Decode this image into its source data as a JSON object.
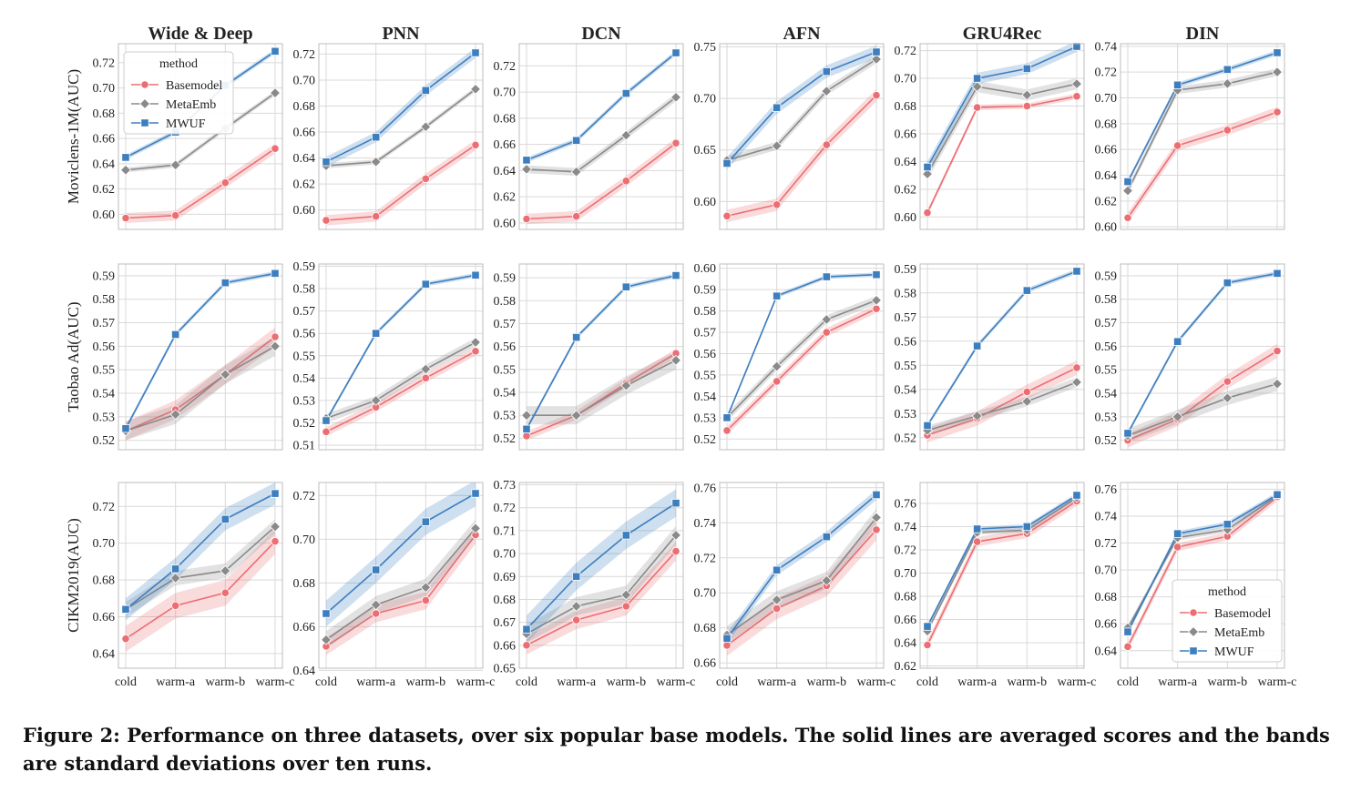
{
  "caption": "Figure 2: Performance on three datasets, over six popular base models. The solid lines are averaged scores and the bands are standard deviations over ten runs.",
  "legend": {
    "title": "method",
    "entries": [
      "Basemodel",
      "MetaEmb",
      "MWUF"
    ],
    "colors": {
      "Basemodel": "#ec6e73",
      "MetaEmb": "#8a8a8a",
      "MWUF": "#3d7ebf"
    },
    "markers": {
      "Basemodel": "circle",
      "MetaEmb": "diamond",
      "MWUF": "square"
    },
    "placement": [
      "upper-left of Wide & Deep / Movielens-1M",
      "lower-right of DIN / CIKM2019"
    ]
  },
  "chart_data": {
    "type": "line",
    "columns": [
      "Wide & Deep",
      "PNN",
      "DCN",
      "AFN",
      "GRU4Rec",
      "DIN"
    ],
    "rows": [
      "Moviclens-1M(AUC)",
      "Taobao Ad(AUC)",
      "CIKM2019(AUC)"
    ],
    "categories": [
      "cold",
      "warm-a",
      "warm-b",
      "warm-c"
    ],
    "grid": true,
    "bands": "standard deviation",
    "panels": [
      [
        {
          "ylim": [
            0.588,
            0.735
          ],
          "yticks": [
            "0.60",
            "0.62",
            "0.64",
            "0.66",
            "0.68",
            "0.70",
            "0.72"
          ],
          "series": [
            {
              "name": "Basemodel",
              "values": [
                0.597,
                0.599,
                0.625,
                0.652
              ],
              "std": 0.004
            },
            {
              "name": "MetaEmb",
              "values": [
                0.635,
                0.639,
                0.668,
                0.696
              ],
              "std": 0.002
            },
            {
              "name": "MWUF",
              "values": [
                0.645,
                0.665,
                0.702,
                0.729
              ],
              "std": 0.002
            }
          ]
        },
        {
          "ylim": [
            0.585,
            0.728
          ],
          "yticks": [
            "0.60",
            "0.62",
            "0.64",
            "0.66",
            "0.68",
            "0.70",
            "0.72"
          ],
          "series": [
            {
              "name": "Basemodel",
              "values": [
                0.592,
                0.595,
                0.624,
                0.65
              ],
              "std": 0.004
            },
            {
              "name": "MetaEmb",
              "values": [
                0.634,
                0.637,
                0.664,
                0.693
              ],
              "std": 0.002
            },
            {
              "name": "MWUF",
              "values": [
                0.637,
                0.656,
                0.692,
                0.721
              ],
              "std": 0.004
            }
          ]
        },
        {
          "ylim": [
            0.595,
            0.737
          ],
          "yticks": [
            "0.60",
            "0.62",
            "0.64",
            "0.66",
            "0.68",
            "0.70",
            "0.72"
          ],
          "series": [
            {
              "name": "Basemodel",
              "values": [
                0.603,
                0.605,
                0.632,
                0.661
              ],
              "std": 0.004
            },
            {
              "name": "MetaEmb",
              "values": [
                0.641,
                0.639,
                0.667,
                0.696
              ],
              "std": 0.003
            },
            {
              "name": "MWUF",
              "values": [
                0.648,
                0.663,
                0.699,
                0.73
              ],
              "std": 0.002
            }
          ]
        },
        {
          "ylim": [
            0.573,
            0.753
          ],
          "yticks": [
            "0.60",
            "0.65",
            "0.70",
            "0.75"
          ],
          "series": [
            {
              "name": "Basemodel",
              "values": [
                0.586,
                0.597,
                0.655,
                0.703
              ],
              "std": 0.006
            },
            {
              "name": "MetaEmb",
              "values": [
                0.64,
                0.654,
                0.707,
                0.738
              ],
              "std": 0.004
            },
            {
              "name": "MWUF",
              "values": [
                0.637,
                0.691,
                0.726,
                0.745
              ],
              "std": 0.006
            }
          ]
        },
        {
          "ylim": [
            0.591,
            0.725
          ],
          "yticks": [
            "0.60",
            "0.62",
            "0.64",
            "0.66",
            "0.68",
            "0.70",
            "0.72"
          ],
          "series": [
            {
              "name": "Basemodel",
              "values": [
                0.603,
                0.679,
                0.68,
                0.687
              ],
              "std": 0.002
            },
            {
              "name": "MetaEmb",
              "values": [
                0.631,
                0.694,
                0.688,
                0.696
              ],
              "std": 0.004
            },
            {
              "name": "MWUF",
              "values": [
                0.636,
                0.7,
                0.707,
                0.723
              ],
              "std": 0.004
            }
          ]
        },
        {
          "ylim": [
            0.598,
            0.742
          ],
          "yticks": [
            "0.60",
            "0.62",
            "0.64",
            "0.66",
            "0.68",
            "0.70",
            "0.72",
            "0.74"
          ],
          "series": [
            {
              "name": "Basemodel",
              "values": [
                0.607,
                0.663,
                0.675,
                0.689
              ],
              "std": 0.004
            },
            {
              "name": "MetaEmb",
              "values": [
                0.628,
                0.706,
                0.711,
                0.72
              ],
              "std": 0.003
            },
            {
              "name": "MWUF",
              "values": [
                0.635,
                0.71,
                0.722,
                0.735
              ],
              "std": 0.002
            }
          ]
        }
      ],
      [
        {
          "ylim": [
            0.516,
            0.595
          ],
          "yticks": [
            "0.52",
            "0.53",
            "0.54",
            "0.55",
            "0.56",
            "0.57",
            "0.58",
            "0.59"
          ],
          "series": [
            {
              "name": "Basemodel",
              "values": [
                0.524,
                0.533,
                0.548,
                0.564
              ],
              "std": 0.004
            },
            {
              "name": "MetaEmb",
              "values": [
                0.524,
                0.531,
                0.548,
                0.56
              ],
              "std": 0.004
            },
            {
              "name": "MWUF",
              "values": [
                0.525,
                0.565,
                0.587,
                0.591
              ],
              "std": 0.001
            }
          ]
        },
        {
          "ylim": [
            0.508,
            0.591
          ],
          "yticks": [
            "0.51",
            "0.52",
            "0.53",
            "0.54",
            "0.55",
            "0.56",
            "0.57",
            "0.58",
            "0.59"
          ],
          "series": [
            {
              "name": "Basemodel",
              "values": [
                0.516,
                0.527,
                0.54,
                0.552
              ],
              "std": 0.002
            },
            {
              "name": "MetaEmb",
              "values": [
                0.522,
                0.53,
                0.544,
                0.556
              ],
              "std": 0.002
            },
            {
              "name": "MWUF",
              "values": [
                0.521,
                0.56,
                0.582,
                0.586
              ],
              "std": 0.001
            }
          ]
        },
        {
          "ylim": [
            0.515,
            0.596
          ],
          "yticks": [
            "0.52",
            "0.53",
            "0.54",
            "0.55",
            "0.56",
            "0.57",
            "0.58",
            "0.59"
          ],
          "series": [
            {
              "name": "Basemodel",
              "values": [
                0.521,
                0.53,
                0.544,
                0.557
              ],
              "std": 0.002
            },
            {
              "name": "MetaEmb",
              "values": [
                0.53,
                0.53,
                0.543,
                0.554
              ],
              "std": 0.004
            },
            {
              "name": "MWUF",
              "values": [
                0.524,
                0.564,
                0.586,
                0.591
              ],
              "std": 0.001
            }
          ]
        },
        {
          "ylim": [
            0.515,
            0.602
          ],
          "yticks": [
            "0.52",
            "0.53",
            "0.54",
            "0.55",
            "0.56",
            "0.57",
            "0.58",
            "0.59",
            "0.60"
          ],
          "series": [
            {
              "name": "Basemodel",
              "values": [
                0.524,
                0.547,
                0.57,
                0.581
              ],
              "std": 0.002
            },
            {
              "name": "MetaEmb",
              "values": [
                0.53,
                0.554,
                0.576,
                0.585
              ],
              "std": 0.002
            },
            {
              "name": "MWUF",
              "values": [
                0.53,
                0.587,
                0.596,
                0.597
              ],
              "std": 0.001
            }
          ]
        },
        {
          "ylim": [
            0.515,
            0.592
          ],
          "yticks": [
            "0.52",
            "0.53",
            "0.54",
            "0.55",
            "0.56",
            "0.57",
            "0.58",
            "0.59"
          ],
          "series": [
            {
              "name": "Basemodel",
              "values": [
                0.521,
                0.528,
                0.539,
                0.549
              ],
              "std": 0.003
            },
            {
              "name": "MetaEmb",
              "values": [
                0.523,
                0.529,
                0.535,
                0.543
              ],
              "std": 0.002
            },
            {
              "name": "MWUF",
              "values": [
                0.525,
                0.558,
                0.581,
                0.589
              ],
              "std": 0.001
            }
          ]
        },
        {
          "ylim": [
            0.516,
            0.595
          ],
          "yticks": [
            "0.52",
            "0.53",
            "0.54",
            "0.55",
            "0.56",
            "0.57",
            "0.58",
            "0.59"
          ],
          "series": [
            {
              "name": "Basemodel",
              "values": [
                0.52,
                0.529,
                0.545,
                0.558
              ],
              "std": 0.003
            },
            {
              "name": "MetaEmb",
              "values": [
                0.522,
                0.53,
                0.538,
                0.544
              ],
              "std": 0.003
            },
            {
              "name": "MWUF",
              "values": [
                0.523,
                0.562,
                0.587,
                0.591
              ],
              "std": 0.001
            }
          ]
        }
      ],
      [
        {
          "ylim": [
            0.632,
            0.733
          ],
          "yticks": [
            "0.64",
            "0.66",
            "0.68",
            "0.70",
            "0.72"
          ],
          "series": [
            {
              "name": "Basemodel",
              "values": [
                0.648,
                0.666,
                0.673,
                0.701
              ],
              "std": 0.007
            },
            {
              "name": "MetaEmb",
              "values": [
                0.664,
                0.681,
                0.685,
                0.709
              ],
              "std": 0.004
            },
            {
              "name": "MWUF",
              "values": [
                0.664,
                0.686,
                0.713,
                0.727
              ],
              "std": 0.006
            }
          ]
        },
        {
          "ylim": [
            0.641,
            0.726
          ],
          "yticks": [
            "0.64",
            "0.66",
            "0.68",
            "0.70",
            "0.72"
          ],
          "series": [
            {
              "name": "Basemodel",
              "values": [
                0.651,
                0.666,
                0.672,
                0.702
              ],
              "std": 0.004
            },
            {
              "name": "MetaEmb",
              "values": [
                0.654,
                0.67,
                0.678,
                0.705
              ],
              "std": 0.004
            },
            {
              "name": "MWUF",
              "values": [
                0.666,
                0.686,
                0.708,
                0.721
              ],
              "std": 0.006
            }
          ]
        },
        {
          "ylim": [
            0.65,
            0.731
          ],
          "yticks": [
            "0.65",
            "0.66",
            "0.67",
            "0.68",
            "0.69",
            "0.70",
            "0.71",
            "0.72",
            "0.73"
          ],
          "series": [
            {
              "name": "Basemodel",
              "values": [
                0.66,
                0.671,
                0.677,
                0.701
              ],
              "std": 0.004
            },
            {
              "name": "MetaEmb",
              "values": [
                0.665,
                0.677,
                0.682,
                0.708
              ],
              "std": 0.004
            },
            {
              "name": "MWUF",
              "values": [
                0.667,
                0.69,
                0.708,
                0.722
              ],
              "std": 0.006
            }
          ]
        },
        {
          "ylim": [
            0.657,
            0.763
          ],
          "yticks": [
            "0.66",
            "0.68",
            "0.70",
            "0.72",
            "0.74",
            "0.76"
          ],
          "series": [
            {
              "name": "Basemodel",
              "values": [
                0.67,
                0.691,
                0.704,
                0.736
              ],
              "std": 0.006
            },
            {
              "name": "MetaEmb",
              "values": [
                0.676,
                0.696,
                0.707,
                0.743
              ],
              "std": 0.005
            },
            {
              "name": "MWUF",
              "values": [
                0.674,
                0.713,
                0.732,
                0.756
              ],
              "std": 0.003
            }
          ]
        },
        {
          "ylim": [
            0.618,
            0.778
          ],
          "yticks": [
            "0.62",
            "0.64",
            "0.66",
            "0.68",
            "0.70",
            "0.72",
            "0.74",
            "0.76"
          ],
          "series": [
            {
              "name": "Basemodel",
              "values": [
                0.638,
                0.727,
                0.734,
                0.762
              ],
              "std": 0.004
            },
            {
              "name": "MetaEmb",
              "values": [
                0.65,
                0.735,
                0.737,
                0.765
              ],
              "std": 0.002
            },
            {
              "name": "MWUF",
              "values": [
                0.654,
                0.738,
                0.74,
                0.767
              ],
              "std": 0.002
            }
          ]
        },
        {
          "ylim": [
            0.627,
            0.765
          ],
          "yticks": [
            "0.64",
            "0.66",
            "0.68",
            "0.70",
            "0.72",
            "0.74",
            "0.76"
          ],
          "series": [
            {
              "name": "Basemodel",
              "values": [
                0.643,
                0.717,
                0.725,
                0.754
              ],
              "std": 0.003
            },
            {
              "name": "MetaEmb",
              "values": [
                0.657,
                0.724,
                0.73,
                0.755
              ],
              "std": 0.002
            },
            {
              "name": "MWUF",
              "values": [
                0.654,
                0.727,
                0.734,
                0.756
              ],
              "std": 0.002
            }
          ]
        }
      ]
    ]
  }
}
